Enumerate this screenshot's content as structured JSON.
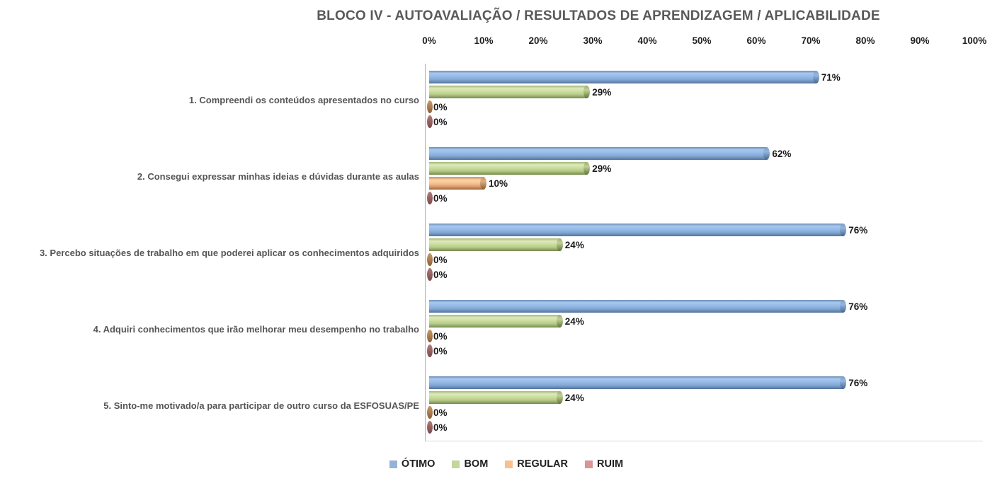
{
  "chart_data": {
    "type": "bar",
    "orientation": "horizontal",
    "title": "BLOCO IV - AUTOAVALIAÇÃO / RESULTADOS DE APRENDIZAGEM / APLICABILIDADE",
    "categories": [
      "1. Compreendi os conteúdos apresentados no curso",
      "2. Consegui expressar minhas ideias e dúvidas durante as aulas",
      "3. Percebo situações de trabalho em que poderei aplicar os conhecimentos adquiridos",
      "4. Adquiri conhecimentos que irão melhorar meu desempenho no trabalho",
      "5. Sinto-me motivado/a para participar de outro curso da ESFOSUAS/PE"
    ],
    "series": [
      {
        "name": "ÓTIMO",
        "color": "#95B3D7",
        "values": [
          71,
          62,
          76,
          76,
          76
        ]
      },
      {
        "name": "BOM",
        "color": "#C3D69B",
        "values": [
          29,
          29,
          24,
          24,
          24
        ]
      },
      {
        "name": "REGULAR",
        "color": "#FAC090",
        "values": [
          0,
          10,
          0,
          0,
          0
        ]
      },
      {
        "name": "RUIM",
        "color": "#D99694",
        "values": [
          0,
          0,
          0,
          0,
          0
        ]
      }
    ],
    "data_labels": [
      [
        "71%",
        "29%",
        "0%",
        "0%"
      ],
      [
        "62%",
        "29%",
        "10%",
        "0%"
      ],
      [
        "76%",
        "24%",
        "0%",
        "0%"
      ],
      [
        "76%",
        "24%",
        "0%",
        "0%"
      ],
      [
        "76%",
        "24%",
        "0%",
        "0%"
      ]
    ],
    "x_axis": {
      "min": 0,
      "max": 100,
      "tick_labels": [
        "0%",
        "10%",
        "20%",
        "30%",
        "40%",
        "50%",
        "60%",
        "70%",
        "80%",
        "90%",
        "100%"
      ]
    },
    "legend": {
      "position": "bottom",
      "entries": [
        "ÓTIMO",
        "BOM",
        "REGULAR",
        "RUIM"
      ]
    },
    "grid": false,
    "bar_style": "3d-cylinder"
  }
}
